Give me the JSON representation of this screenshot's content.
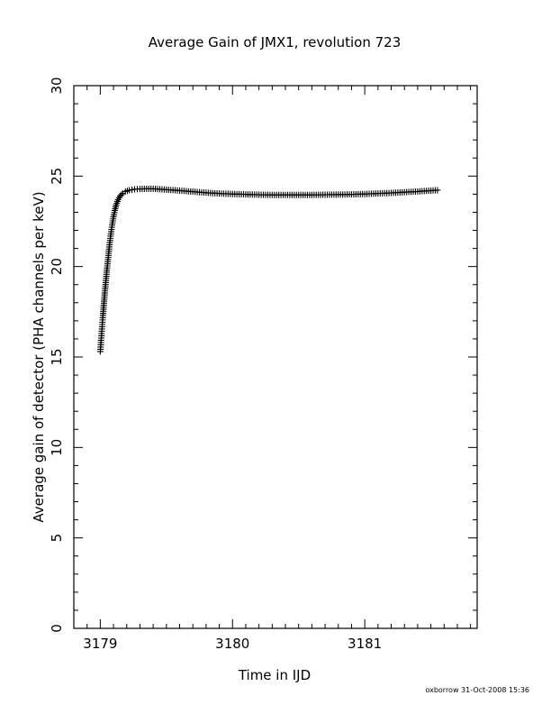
{
  "chart_data": {
    "type": "scatter",
    "title": "Average Gain of JMX1, revolution 723",
    "xlabel": "Time in IJD",
    "ylabel": "Average gain of detector (PHA channels per keV)",
    "xlim": [
      3178.8,
      3181.85
    ],
    "ylim": [
      0,
      30
    ],
    "xticks": [
      3179,
      3180,
      3181
    ],
    "yticks": [
      0,
      5,
      10,
      15,
      20,
      25,
      30
    ],
    "grid": false,
    "marker": "plus",
    "series": [
      {
        "points": [
          [
            3179.0,
            15.3
          ],
          [
            3179.01,
            16.3
          ],
          [
            3179.02,
            17.3
          ],
          [
            3179.03,
            18.2
          ],
          [
            3179.04,
            19.0
          ],
          [
            3179.05,
            19.8
          ],
          [
            3179.06,
            20.5
          ],
          [
            3179.07,
            21.2
          ],
          [
            3179.08,
            21.8
          ],
          [
            3179.09,
            22.3
          ],
          [
            3179.1,
            22.75
          ],
          [
            3179.11,
            23.1
          ],
          [
            3179.12,
            23.4
          ],
          [
            3179.135,
            23.7
          ],
          [
            3179.15,
            23.9
          ],
          [
            3179.17,
            24.05
          ],
          [
            3179.19,
            24.15
          ],
          [
            3179.22,
            24.22
          ],
          [
            3179.26,
            24.27
          ],
          [
            3179.3,
            24.29
          ],
          [
            3179.35,
            24.3
          ],
          [
            3179.4,
            24.3
          ],
          [
            3179.5,
            24.25
          ],
          [
            3179.6,
            24.2
          ],
          [
            3179.7,
            24.14
          ],
          [
            3179.8,
            24.08
          ],
          [
            3179.9,
            24.04
          ],
          [
            3180.0,
            24.01
          ],
          [
            3180.1,
            23.99
          ],
          [
            3180.2,
            23.97
          ],
          [
            3180.3,
            23.96
          ],
          [
            3180.4,
            23.96
          ],
          [
            3180.5,
            23.96
          ],
          [
            3180.6,
            23.96
          ],
          [
            3180.7,
            23.97
          ],
          [
            3180.8,
            23.98
          ],
          [
            3180.9,
            23.99
          ],
          [
            3181.0,
            24.01
          ],
          [
            3181.1,
            24.04
          ],
          [
            3181.2,
            24.07
          ],
          [
            3181.3,
            24.11
          ],
          [
            3181.4,
            24.15
          ],
          [
            3181.5,
            24.2
          ],
          [
            3181.55,
            24.22
          ]
        ]
      }
    ]
  },
  "footer": {
    "stamp": "oxborrow 31-Oct-2008 15:36"
  }
}
